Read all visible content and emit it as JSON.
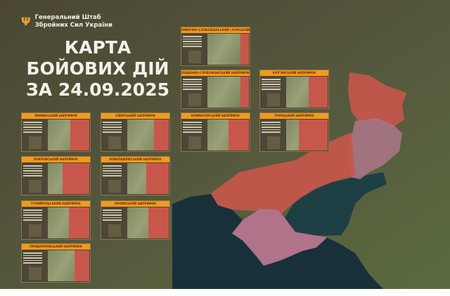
{
  "header": {
    "org_line1": "Генеральний Штаб",
    "org_line2": "Збройних Сил України",
    "logo_icon": "trident-icon",
    "title_line1": "КАРТА",
    "title_line2": "БОЙОВИХ ДІЙ",
    "title_line3": "ЗА 24.09.2025"
  },
  "colors": {
    "occupied": "#c8574b",
    "occupied_pre2022": "#b0738a",
    "accent": "#f39a1b",
    "background": "#4b4a35"
  },
  "panels": [
    {
      "label": "Північно-Слобожанський і Курський напрямки",
      "occupied": 0.2
    },
    {
      "label": "Південно-Слобожанський напрямок",
      "occupied": 0.2
    },
    {
      "label": "Купʼянський напрямок",
      "occupied": 0.45
    },
    {
      "label": "Лиманський напрямок",
      "occupied": 0.45
    },
    {
      "label": "Сіверський напрямок",
      "occupied": 0.35
    },
    {
      "label": "Краматорський напрямок",
      "occupied": 0.5
    },
    {
      "label": "Торецький напрямок",
      "occupied": 0.7
    },
    {
      "label": "Покровський напрямок",
      "occupied": 0.65
    },
    {
      "label": "Новопавлівський напрямок",
      "occupied": 0.55
    },
    {
      "label": "Гуляйпільський напрямок",
      "occupied": 0.5
    },
    {
      "label": "Оріхівський напрямок",
      "occupied": 0.5
    },
    {
      "label": "Придніпровський напрямок",
      "occupied": 0.35
    }
  ]
}
